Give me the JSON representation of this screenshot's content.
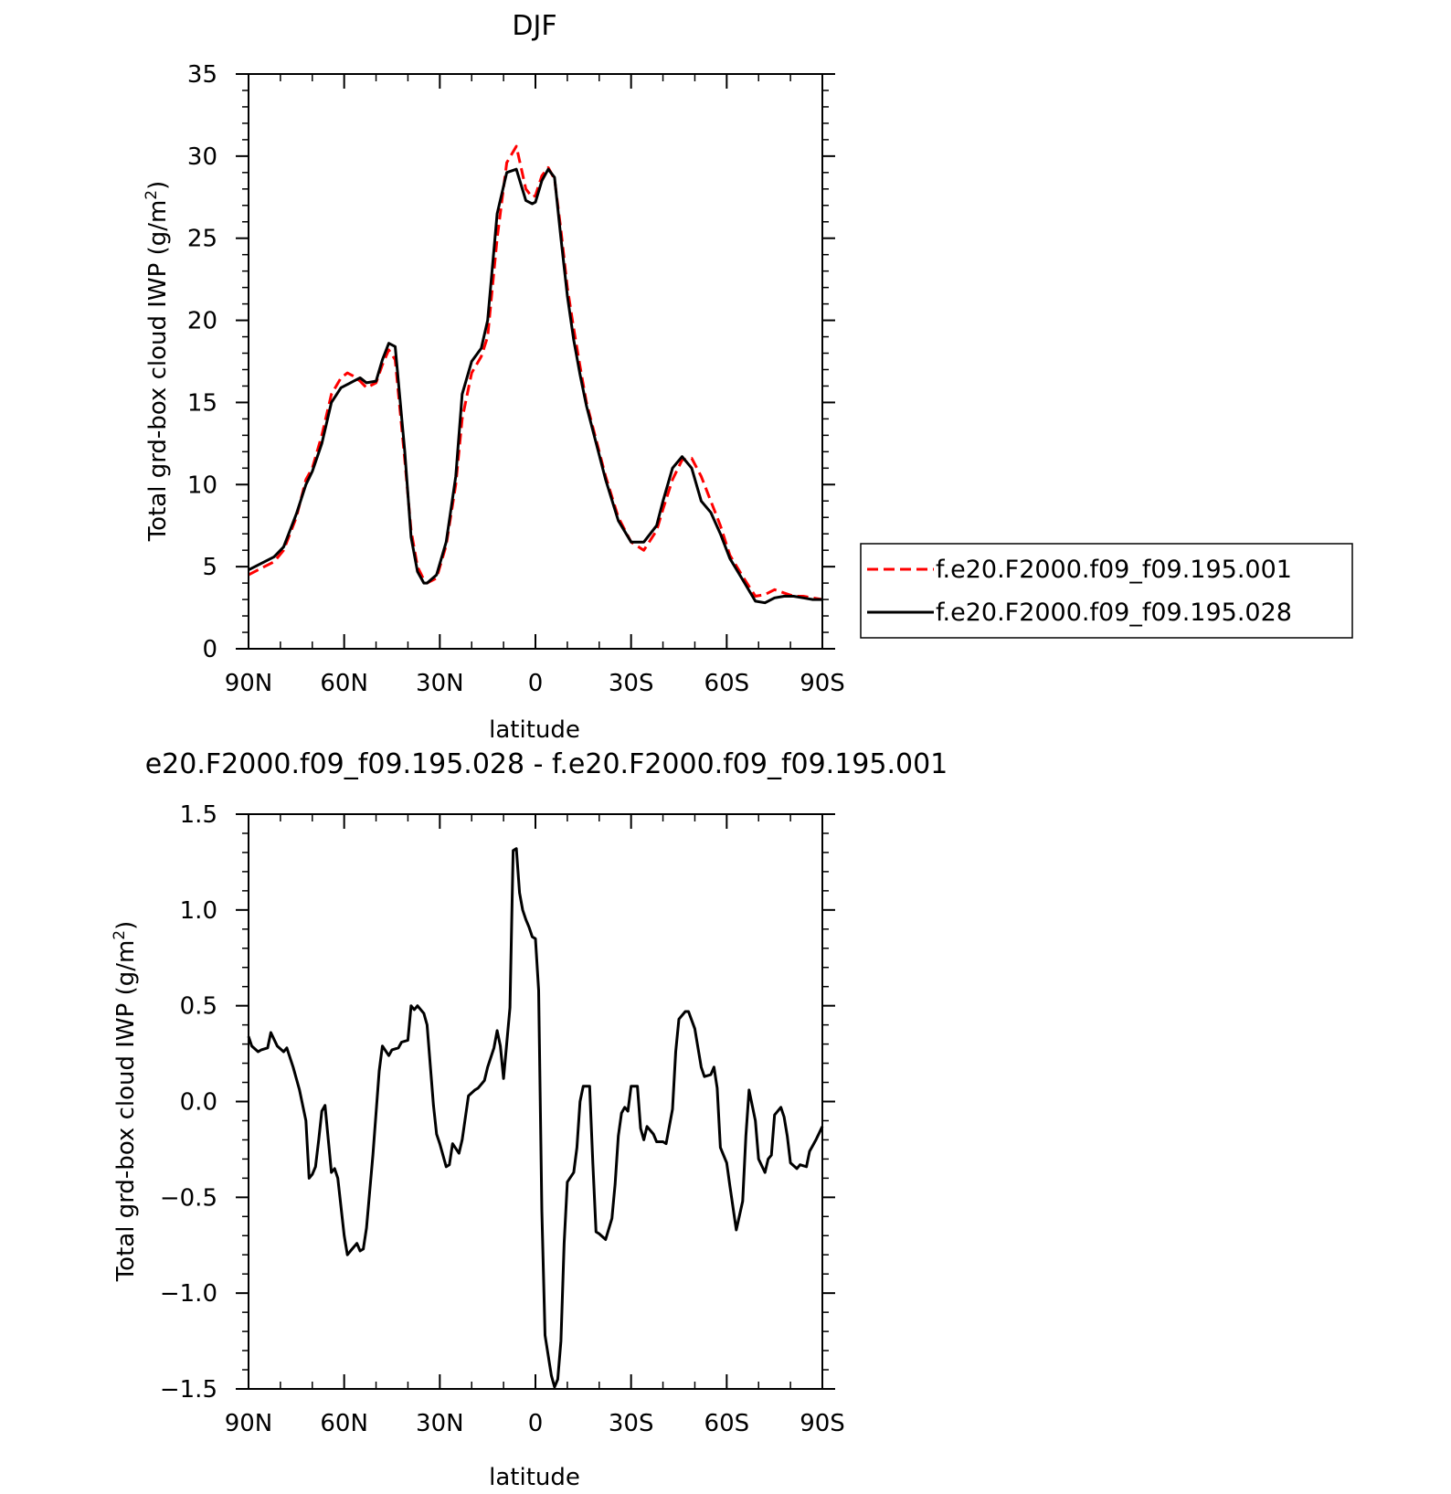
{
  "chart_data": [
    {
      "type": "line",
      "title": "DJF",
      "xlabel": "latitude",
      "ylabel": "Total grd-box cloud IWP (g/m",
      "ylabel_sup": "2",
      "ylabel_close": ")",
      "xlim": [
        90,
        -90
      ],
      "ylim": [
        0,
        35
      ],
      "x_ticks": [
        90,
        60,
        30,
        0,
        -30,
        -60,
        -90
      ],
      "x_tick_labels": [
        "90N",
        "60N",
        "30N",
        "0",
        "30S",
        "60S",
        "90S"
      ],
      "y_ticks": [
        0,
        5,
        10,
        15,
        20,
        25,
        30,
        35
      ],
      "y_tick_labels": [
        "0",
        "5",
        "10",
        "15",
        "20",
        "25",
        "30",
        "35"
      ],
      "x": [
        90,
        85,
        82,
        79,
        75,
        72,
        70,
        67,
        64,
        61,
        59,
        57,
        55,
        53,
        50,
        48,
        46,
        44,
        41,
        39,
        37,
        35,
        34,
        31,
        28,
        25,
        23,
        20,
        17,
        15,
        12,
        9,
        6,
        3,
        1,
        0,
        -2,
        -4,
        -6,
        -8,
        -10,
        -12,
        -14,
        -16,
        -18,
        -20,
        -22,
        -26,
        -30,
        -34,
        -38,
        -40,
        -43,
        -46,
        -49,
        -52,
        -55,
        -58,
        -61,
        -65,
        -69,
        -72,
        -75,
        -78,
        -81,
        -84,
        -87,
        -90
      ],
      "series": [
        {
          "name": "f.e20.F2000.f09_f09.195.001",
          "color": "#ff0000",
          "dash": "dashed",
          "values": [
            4.5,
            5.0,
            5.3,
            6.0,
            8.0,
            10.3,
            11.0,
            13.0,
            15.5,
            16.5,
            16.8,
            16.6,
            16.3,
            15.9,
            16.2,
            17.3,
            18.2,
            17.6,
            11.5,
            7.2,
            5.0,
            4.2,
            4.0,
            4.3,
            6.3,
            10.0,
            14.0,
            16.8,
            17.8,
            19.0,
            25.0,
            29.6,
            30.6,
            28.0,
            27.5,
            27.6,
            28.8,
            29.3,
            28.6,
            25.5,
            22.0,
            19.5,
            17.2,
            15.0,
            13.5,
            12.0,
            10.5,
            8.0,
            6.5,
            6.0,
            7.2,
            8.5,
            10.3,
            11.5,
            11.6,
            10.5,
            9.0,
            7.5,
            5.7,
            4.4,
            3.2,
            3.3,
            3.6,
            3.4,
            3.2,
            3.2,
            3.1,
            3.0
          ]
        },
        {
          "name": "f.e20.F2000.f09_f09.195.028",
          "color": "#000000",
          "dash": "solid",
          "values": [
            4.8,
            5.3,
            5.6,
            6.2,
            8.2,
            10.0,
            10.8,
            12.5,
            15.0,
            15.9,
            16.1,
            16.3,
            16.5,
            16.2,
            16.3,
            17.6,
            18.6,
            18.4,
            12.0,
            6.8,
            4.7,
            4.0,
            4.0,
            4.5,
            6.5,
            10.5,
            15.5,
            17.5,
            18.3,
            20.0,
            26.5,
            29.0,
            29.2,
            27.3,
            27.1,
            27.2,
            28.5,
            29.2,
            28.7,
            25.0,
            21.5,
            18.8,
            16.7,
            14.8,
            13.3,
            11.8,
            10.3,
            7.8,
            6.5,
            6.5,
            7.5,
            9.0,
            11.0,
            11.7,
            11.0,
            9.0,
            8.3,
            7.0,
            5.5,
            4.2,
            2.9,
            2.8,
            3.1,
            3.2,
            3.2,
            3.1,
            3.0,
            3.0
          ]
        }
      ],
      "legend": "right",
      "grid": false
    },
    {
      "type": "line",
      "title": "e20.F2000.f09_f09.195.028 - f.e20.F2000.f09_f09.195.001",
      "xlabel": "latitude",
      "ylabel": "Total grd-box cloud IWP (g/m",
      "ylabel_sup": "2",
      "ylabel_close": ")",
      "xlim": [
        90,
        -90
      ],
      "ylim": [
        -1.5,
        1.5
      ],
      "x_ticks": [
        90,
        60,
        30,
        0,
        -30,
        -60,
        -90
      ],
      "x_tick_labels": [
        "90N",
        "60N",
        "30N",
        "0",
        "30S",
        "60S",
        "90S"
      ],
      "y_ticks": [
        -1.5,
        -1.0,
        -0.5,
        0.0,
        0.5,
        1.0,
        1.5
      ],
      "y_tick_labels": [
        "−1.5",
        "−1.0",
        "−0.5",
        "0.0",
        "0.5",
        "1.0",
        "1.5"
      ],
      "x": [
        90,
        89,
        87,
        86,
        84,
        83,
        81,
        79,
        78,
        76,
        74,
        72,
        71,
        70,
        69,
        68,
        67,
        66,
        64,
        63,
        62,
        60,
        59,
        58,
        56,
        55,
        54,
        53,
        51,
        49,
        48,
        46,
        45,
        43,
        42,
        40,
        39,
        38,
        37,
        35,
        34,
        32,
        31,
        30,
        28,
        27,
        26,
        24,
        23,
        21,
        19,
        18,
        16,
        15,
        13,
        12,
        11,
        10,
        8,
        7,
        6,
        5,
        4,
        3,
        2,
        1,
        0,
        -1,
        -2,
        -3,
        -5,
        -6,
        -7,
        -8,
        -9,
        -10,
        -12,
        -13,
        -14,
        -15,
        -17,
        -18,
        -19,
        -20,
        -22,
        -24,
        -25,
        -26,
        -27,
        -28,
        -29,
        -30,
        -32,
        -33,
        -34,
        -35,
        -37,
        -38,
        -40,
        -41,
        -43,
        -44,
        -45,
        -47,
        -48,
        -50,
        -51,
        -52,
        -53,
        -55,
        -56,
        -57,
        -58,
        -60,
        -61,
        -63,
        -65,
        -66,
        -67,
        -69,
        -70,
        -72,
        -73,
        -74,
        -75,
        -77,
        -78,
        -79,
        -80,
        -82,
        -83,
        -85,
        -86,
        -88,
        -90
      ],
      "series": [
        {
          "name": "",
          "color": "#000000",
          "dash": "solid",
          "values": [
            0.34,
            0.29,
            0.26,
            0.27,
            0.28,
            0.36,
            0.29,
            0.26,
            0.28,
            0.18,
            0.06,
            -0.1,
            -0.4,
            -0.38,
            -0.34,
            -0.2,
            -0.05,
            -0.02,
            -0.37,
            -0.35,
            -0.4,
            -0.7,
            -0.8,
            -0.78,
            -0.74,
            -0.78,
            -0.77,
            -0.66,
            -0.28,
            0.16,
            0.29,
            0.24,
            0.27,
            0.28,
            0.31,
            0.32,
            0.5,
            0.48,
            0.5,
            0.46,
            0.4,
            -0.02,
            -0.17,
            -0.22,
            -0.34,
            -0.33,
            -0.22,
            -0.27,
            -0.2,
            0.03,
            0.06,
            0.07,
            0.11,
            0.18,
            0.28,
            0.37,
            0.29,
            0.12,
            0.49,
            1.31,
            1.32,
            1.09,
            1.0,
            0.95,
            0.91,
            0.86,
            0.85,
            0.58,
            -0.57,
            -1.22,
            -1.43,
            -1.49,
            -1.45,
            -1.25,
            -0.74,
            -0.42,
            -0.37,
            -0.24,
            0.0,
            0.08,
            0.08,
            -0.32,
            -0.68,
            -0.69,
            -0.72,
            -0.61,
            -0.43,
            -0.18,
            -0.06,
            -0.03,
            -0.05,
            0.08,
            0.08,
            -0.14,
            -0.2,
            -0.13,
            -0.17,
            -0.21,
            -0.21,
            -0.22,
            -0.04,
            0.26,
            0.43,
            0.47,
            0.47,
            0.38,
            0.28,
            0.18,
            0.13,
            0.14,
            0.18,
            0.07,
            -0.24,
            -0.32,
            -0.44,
            -0.67,
            -0.52,
            -0.18,
            0.06,
            -0.1,
            -0.3,
            -0.37,
            -0.3,
            -0.28,
            -0.07,
            -0.03,
            -0.08,
            -0.18,
            -0.32,
            -0.35,
            -0.33,
            -0.34,
            -0.26,
            -0.2,
            -0.13
          ]
        }
      ],
      "legend": "none",
      "grid": false
    }
  ]
}
